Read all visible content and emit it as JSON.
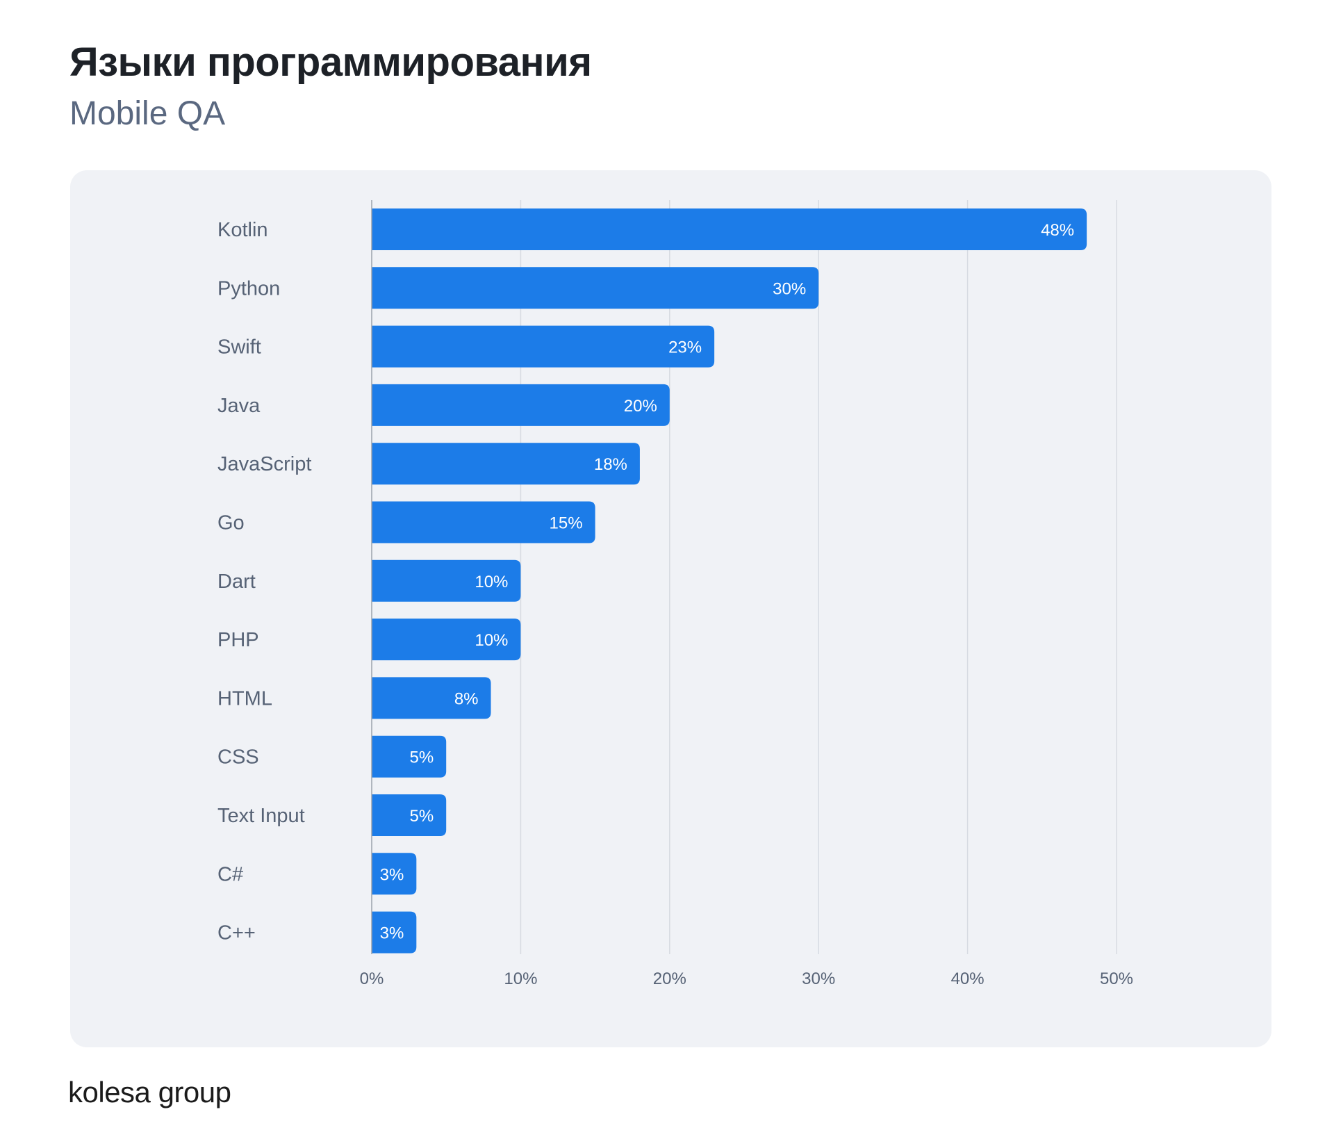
{
  "header": {
    "title": "Языки программирования",
    "subtitle": "Mobile QA"
  },
  "footer": {
    "brand": "kolesa group"
  },
  "colors": {
    "bar": "#1c7ce8",
    "bar_label": "#ffffff",
    "category_label": "#566275",
    "tick_label": "#566275",
    "gridline": "#d7dbe2",
    "axis": "#9aa1ab"
  },
  "chart_data": {
    "type": "bar",
    "orientation": "horizontal",
    "title": "Языки программирования",
    "subtitle": "Mobile QA",
    "categories": [
      "Kotlin",
      "Python",
      "Swift",
      "Java",
      "JavaScript",
      "Go",
      "Dart",
      "PHP",
      "HTML",
      "CSS",
      "Text Input",
      "C#",
      "C++"
    ],
    "values": [
      48,
      30,
      23,
      20,
      18,
      15,
      10,
      10,
      8,
      5,
      5,
      3,
      3
    ],
    "value_labels": [
      "48%",
      "30%",
      "23%",
      "20%",
      "18%",
      "15%",
      "10%",
      "10%",
      "8%",
      "5%",
      "5%",
      "3%",
      "3%"
    ],
    "xticks": [
      0,
      10,
      20,
      30,
      40,
      50
    ],
    "xtick_labels": [
      "0%",
      "10%",
      "20%",
      "30%",
      "40%",
      "50%"
    ],
    "xlim": [
      0,
      50
    ],
    "xlabel": "",
    "ylabel": "",
    "grid": true,
    "legend": "none"
  }
}
